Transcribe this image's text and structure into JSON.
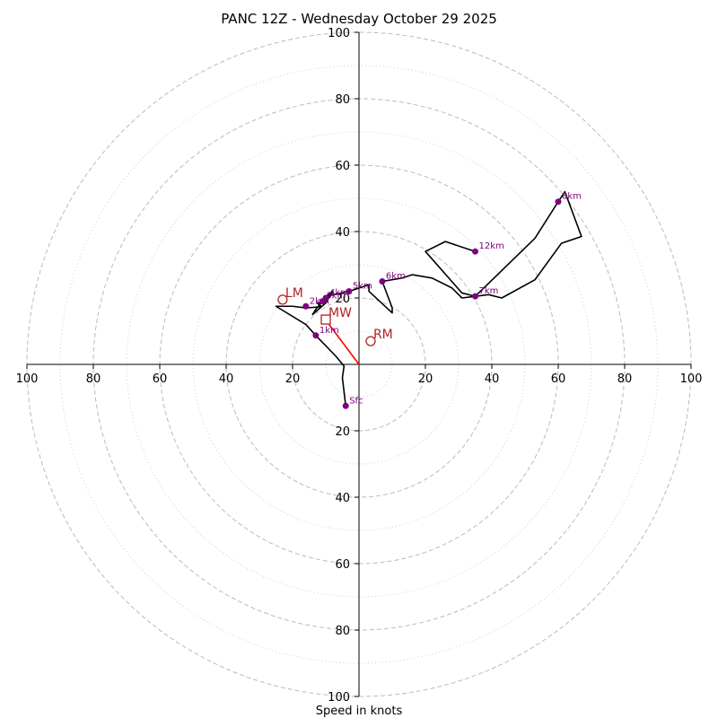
{
  "title": "PANC 12Z - Wednesday October 29 2025",
  "chart_data": {
    "type": "scatter",
    "title": "PANC 12Z - Wednesday October 29 2025",
    "xlabel": "Speed in knots",
    "ylabel": "",
    "xlim": [
      -100,
      100
    ],
    "ylim": [
      -100,
      100
    ],
    "grid": true,
    "x_tick_labels": [
      "100",
      "80",
      "60",
      "40",
      "20",
      "20",
      "40",
      "60",
      "80",
      "100"
    ],
    "y_tick_labels": [
      "100",
      "80",
      "60",
      "40",
      "20",
      "20",
      "40",
      "60",
      "80",
      "100"
    ],
    "rings": [
      20,
      40,
      60,
      80,
      100
    ],
    "minor_rings": [
      10,
      30,
      50,
      70,
      90
    ],
    "hodograph_trace": [
      [
        4,
        -12.5
      ],
      [
        5,
        -4
      ],
      [
        4.5,
        -0.5
      ],
      [
        7,
        2.5
      ],
      [
        13,
        8.7
      ],
      [
        16,
        12
      ],
      [
        25,
        17.5
      ],
      [
        23,
        17.5
      ],
      [
        20,
        17.5
      ],
      [
        16,
        17
      ],
      [
        12,
        17.3
      ],
      [
        11.5,
        17.6
      ],
      [
        12.5,
        18.4
      ],
      [
        11,
        19
      ],
      [
        13,
        16.6
      ],
      [
        14,
        15
      ],
      [
        10,
        18.5
      ],
      [
        8,
        22
      ],
      [
        10,
        20.5
      ],
      [
        3,
        22
      ],
      [
        -3,
        24
      ],
      [
        -3,
        22
      ],
      [
        -10,
        15.5
      ],
      [
        -10,
        17
      ],
      [
        -7,
        25
      ],
      [
        -13,
        26
      ],
      [
        -16,
        27
      ],
      [
        -22,
        26
      ],
      [
        -28,
        23
      ],
      [
        -31,
        20
      ],
      [
        -35,
        20.5
      ],
      [
        -39,
        21
      ],
      [
        -43,
        20
      ],
      [
        -53,
        25.5
      ],
      [
        -61,
        36.5
      ],
      [
        -67,
        38.5
      ],
      [
        -62,
        52
      ],
      [
        -60,
        49
      ],
      [
        -53,
        38
      ],
      [
        -35,
        20.5
      ],
      [
        -31,
        21.5
      ],
      [
        -20,
        34
      ],
      [
        -26,
        37
      ],
      [
        -35,
        34
      ]
    ],
    "height_markers": [
      {
        "label": "Sfc",
        "u": 4,
        "v": -12.5
      },
      {
        "label": "1km",
        "u": 13,
        "v": 8.7
      },
      {
        "label": "2km",
        "u": 16,
        "v": 17.5
      },
      {
        "label": "3km",
        "u": 11,
        "v": 19
      },
      {
        "label": "4km",
        "u": 10,
        "v": 20
      },
      {
        "label": "5km",
        "u": 3,
        "v": 22
      },
      {
        "label": "6km",
        "u": -7,
        "v": 25
      },
      {
        "label": "7km",
        "u": -35,
        "v": 20.5
      },
      {
        "label": "8km",
        "u": -60,
        "v": 49
      },
      {
        "label": "12km",
        "u": -35,
        "v": 34
      }
    ],
    "storm_motions": [
      {
        "label": "LM",
        "marker": "circle",
        "u": 23,
        "v": 19.5
      },
      {
        "label": "RM",
        "marker": "circle",
        "u": -3.5,
        "v": 7
      },
      {
        "label": "MW",
        "marker": "square",
        "u": 10,
        "v": 13.5
      }
    ],
    "shear_vector": {
      "from": [
        0,
        0
      ],
      "to": [
        9,
        12
      ]
    },
    "colors": {
      "trace": "#000000",
      "height_marker": "#800080",
      "storm_motion": "#b22222",
      "shear_vector": "#ff0000",
      "ring": "#bbbbbb"
    }
  }
}
